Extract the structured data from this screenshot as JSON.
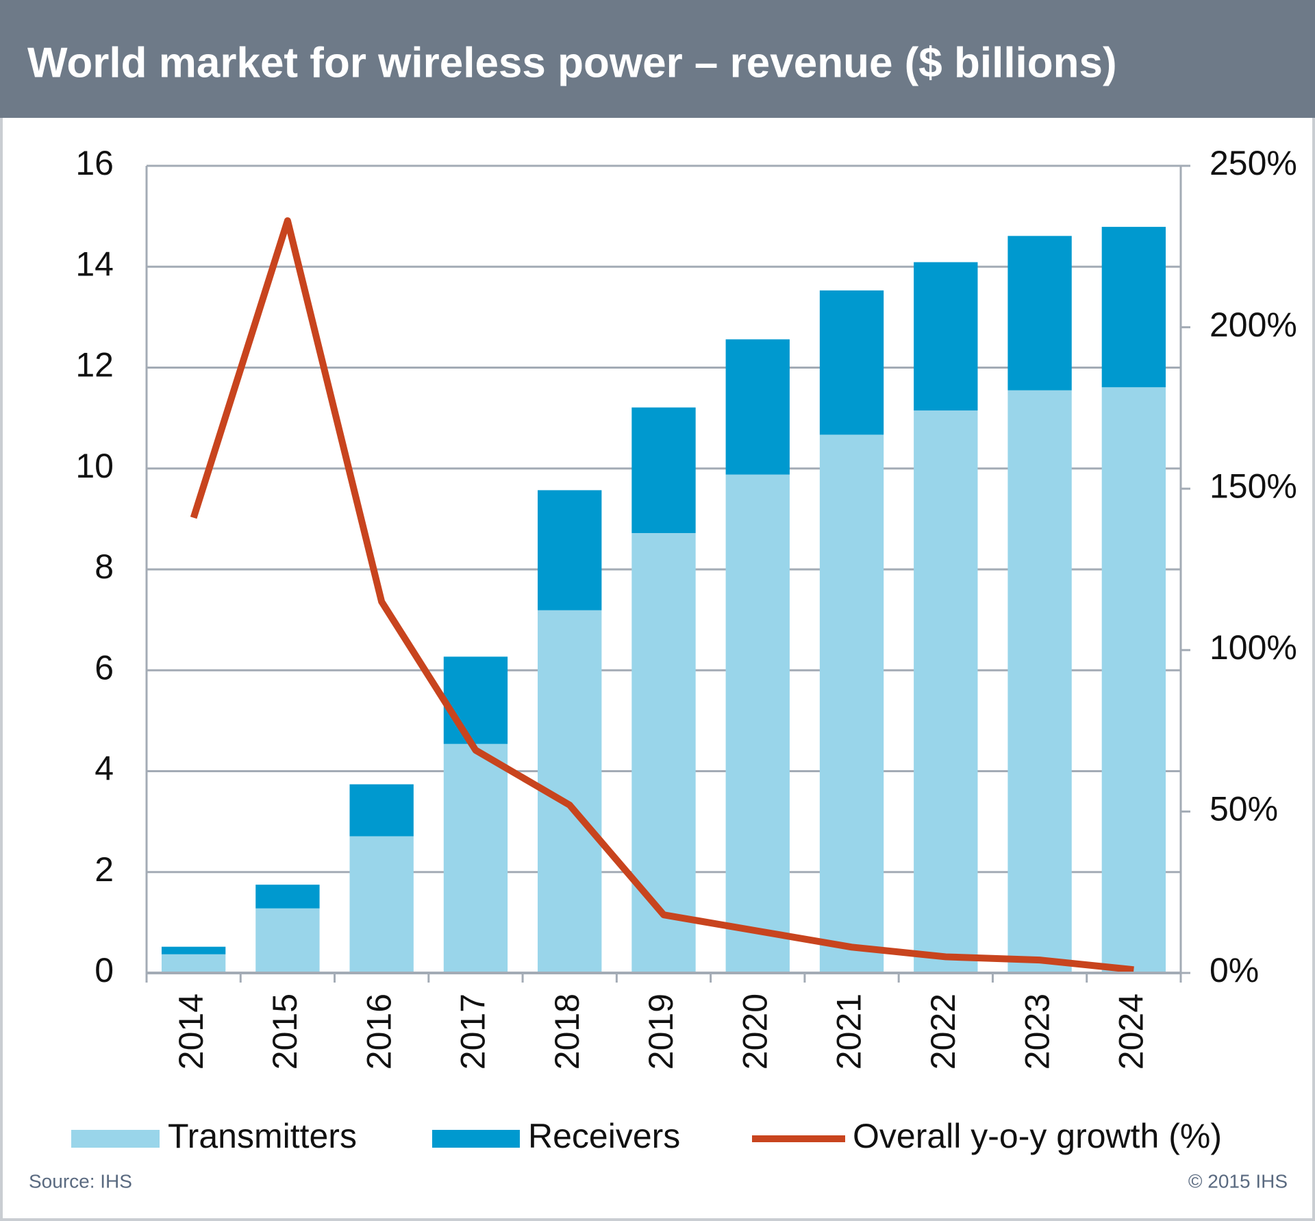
{
  "chart_data": {
    "type": "bar",
    "stacked": true,
    "title": "World market for wireless power – revenue ($ billions)",
    "categories": [
      "2014",
      "2015",
      "2016",
      "2017",
      "2018",
      "2019",
      "2020",
      "2021",
      "2022",
      "2023",
      "2024"
    ],
    "series": [
      {
        "name": "Transmitters",
        "type": "bar",
        "color": "#99d5ea",
        "values": [
          0.37,
          1.28,
          2.71,
          4.54,
          7.19,
          8.72,
          9.88,
          10.67,
          11.15,
          11.55,
          11.61
        ]
      },
      {
        "name": "Receivers",
        "type": "bar",
        "color": "#0099cf",
        "values": [
          0.15,
          0.47,
          1.03,
          1.73,
          2.38,
          2.49,
          2.68,
          2.86,
          2.94,
          3.06,
          3.18
        ]
      },
      {
        "name": "Overall y-o-y growth (%)",
        "type": "line",
        "axis": "y2",
        "color": "#c8441e",
        "values": [
          141,
          233,
          115,
          69,
          52,
          18,
          13,
          8,
          5,
          4,
          1
        ]
      }
    ],
    "ylim": [
      0,
      16
    ],
    "yticks": [
      0,
      2,
      4,
      6,
      8,
      10,
      12,
      14,
      16
    ],
    "y2lim": [
      0,
      250
    ],
    "y2ticks": [
      {
        "value": 0,
        "label": "0%"
      },
      {
        "value": 50,
        "label": "50%"
      },
      {
        "value": 100,
        "label": "100%"
      },
      {
        "value": 150,
        "label": "150%"
      },
      {
        "value": 200,
        "label": "200%"
      },
      {
        "value": 250,
        "label": "250%"
      }
    ],
    "grid": true,
    "legend": "bottom",
    "source": "Source: IHS",
    "copyright": "© 2015 IHS"
  }
}
